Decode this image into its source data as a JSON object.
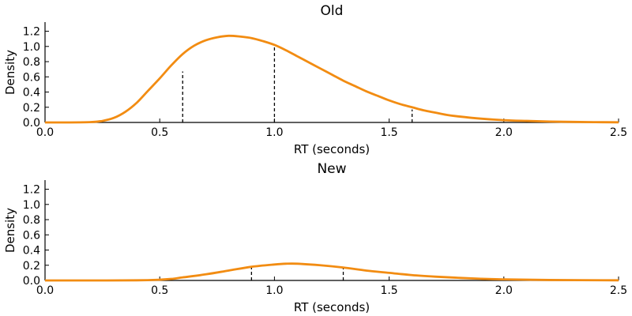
{
  "chart_data": [
    {
      "type": "line",
      "title": "Old",
      "xlabel": "RT (seconds)",
      "ylabel": "Density",
      "xlim": [
        0,
        2.5
      ],
      "ylim": [
        0,
        1.32
      ],
      "xticks": [
        "0.0",
        "0.5",
        "1.0",
        "1.5",
        "2.0",
        "2.5"
      ],
      "yticks": [
        "0.0",
        "0.2",
        "0.4",
        "0.6",
        "0.8",
        "1.0",
        "1.2"
      ],
      "grid": false,
      "line_color": "#f28c12",
      "marker_color": "#000000",
      "series": [
        {
          "x": [
            0,
            0.1,
            0.2,
            0.25,
            0.3,
            0.35,
            0.4,
            0.45,
            0.5,
            0.55,
            0.6,
            0.65,
            0.7,
            0.75,
            0.8,
            0.85,
            0.9,
            0.95,
            1.0,
            1.05,
            1.1,
            1.15,
            1.2,
            1.25,
            1.3,
            1.35,
            1.4,
            1.45,
            1.5,
            1.55,
            1.6,
            1.65,
            1.7,
            1.75,
            1.8,
            1.9,
            2.0,
            2.1,
            2.2,
            2.3,
            2.4,
            2.5
          ],
          "y": [
            0,
            0,
            0.005,
            0.02,
            0.06,
            0.14,
            0.26,
            0.42,
            0.58,
            0.75,
            0.9,
            1.01,
            1.08,
            1.12,
            1.14,
            1.13,
            1.11,
            1.07,
            1.02,
            0.95,
            0.87,
            0.79,
            0.71,
            0.63,
            0.55,
            0.48,
            0.41,
            0.35,
            0.29,
            0.24,
            0.2,
            0.16,
            0.13,
            0.1,
            0.08,
            0.05,
            0.03,
            0.02,
            0.012,
            0.007,
            0.004,
            0.002
          ]
        }
      ],
      "markers": [
        {
          "x": 0.6,
          "y": 0.67
        },
        {
          "x": 1.0,
          "y": 1.02
        },
        {
          "x": 1.6,
          "y": 0.17
        }
      ]
    },
    {
      "type": "line",
      "title": "New",
      "xlabel": "RT (seconds)",
      "ylabel": "Density",
      "xlim": [
        0,
        2.5
      ],
      "ylim": [
        0,
        1.32
      ],
      "xticks": [
        "0.0",
        "0.5",
        "1.0",
        "1.5",
        "2.0",
        "2.5"
      ],
      "yticks": [
        "0.0",
        "0.2",
        "0.4",
        "0.6",
        "0.8",
        "1.0",
        "1.2"
      ],
      "grid": false,
      "line_color": "#f28c12",
      "marker_color": "#000000",
      "series": [
        {
          "x": [
            0,
            0.2,
            0.4,
            0.5,
            0.55,
            0.6,
            0.7,
            0.8,
            0.9,
            1.0,
            1.05,
            1.1,
            1.2,
            1.3,
            1.4,
            1.5,
            1.6,
            1.7,
            1.8,
            1.9,
            2.0,
            2.2,
            2.5
          ],
          "y": [
            0,
            0,
            0.002,
            0.01,
            0.02,
            0.04,
            0.08,
            0.13,
            0.18,
            0.21,
            0.22,
            0.22,
            0.2,
            0.17,
            0.13,
            0.1,
            0.07,
            0.05,
            0.035,
            0.022,
            0.014,
            0.006,
            0.002
          ]
        }
      ],
      "markers": [
        {
          "x": 0.9,
          "y": 0.19
        },
        {
          "x": 1.3,
          "y": 0.17
        }
      ]
    }
  ]
}
